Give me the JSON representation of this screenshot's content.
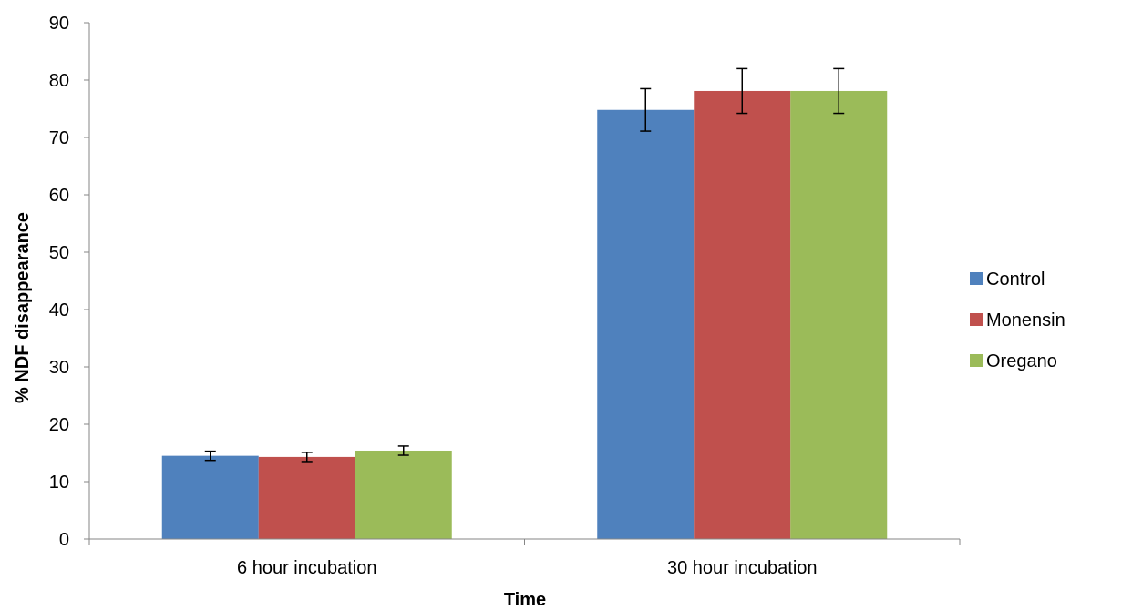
{
  "chart_data": {
    "type": "bar",
    "title": "",
    "xlabel": "Time",
    "ylabel": "% NDF disappearance",
    "categories": [
      "6 hour incubation",
      "30 hour incubation"
    ],
    "ylim": [
      0,
      90
    ],
    "yticks": [
      0,
      10,
      20,
      30,
      40,
      50,
      60,
      70,
      80,
      90
    ],
    "grid": false,
    "legend_position": "right",
    "series": [
      {
        "name": "Control",
        "color": "#4F81BD",
        "values": [
          14.5,
          74.8
        ],
        "errors": [
          0.8,
          3.7
        ]
      },
      {
        "name": "Monensin",
        "color": "#C0504D",
        "values": [
          14.3,
          78.1
        ],
        "errors": [
          0.8,
          3.9
        ]
      },
      {
        "name": "Oregano",
        "color": "#9BBB59",
        "values": [
          15.4,
          78.1
        ],
        "errors": [
          0.8,
          3.9
        ]
      }
    ]
  }
}
